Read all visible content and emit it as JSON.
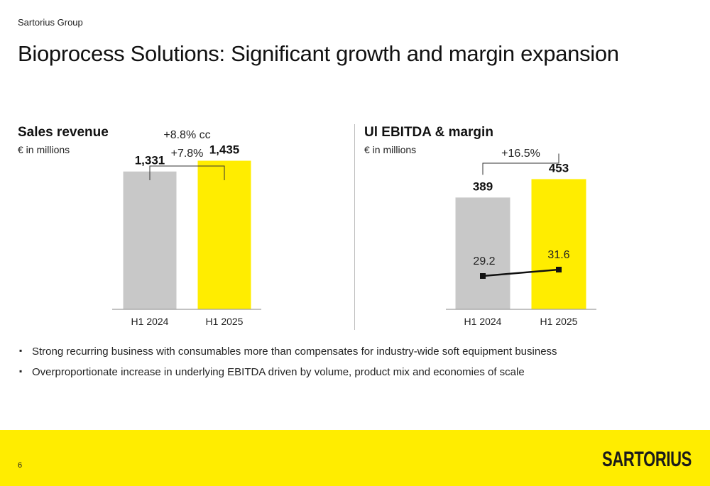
{
  "header": {
    "company": "Sartorius Group",
    "title": "Bioprocess Solutions: Significant growth and margin expansion"
  },
  "colors": {
    "brand_yellow": "#ffed00",
    "bar_gray": "#c8c8c8",
    "axis_gray": "#9e9e9e",
    "line_black": "#111111"
  },
  "chart_data": [
    {
      "type": "bar",
      "title": "Sales revenue",
      "unit": "€ in millions",
      "categories": [
        "H1 2024",
        "H1 2025"
      ],
      "values": [
        1331,
        1435
      ],
      "value_labels": [
        "1,331",
        "1,435"
      ],
      "growth_labels": [
        "+8.8% cc",
        "+7.8%"
      ],
      "ylim": [
        0,
        1610
      ]
    },
    {
      "type": "bar",
      "title": "Ul EBITDA & margin",
      "unit": "€ in millions",
      "categories": [
        "H1 2024",
        "H1 2025"
      ],
      "values": [
        389,
        453
      ],
      "value_labels": [
        "389",
        "453"
      ],
      "growth_labels": [
        "+16.5%"
      ],
      "ylim": [
        0,
        580
      ],
      "margin_line": {
        "values": [
          29.2,
          31.6
        ],
        "labels": [
          "29.2",
          "31.6"
        ]
      }
    }
  ],
  "bullets": [
    "Strong recurring business with consumables more than compensates for industry-wide soft equipment business",
    "Overproportionate increase in underlying EBITDA driven by volume, product mix and economies of scale"
  ],
  "footer": {
    "page_number": "6",
    "logo_text": "SARTORIUS",
    "background": "#ffed00"
  }
}
